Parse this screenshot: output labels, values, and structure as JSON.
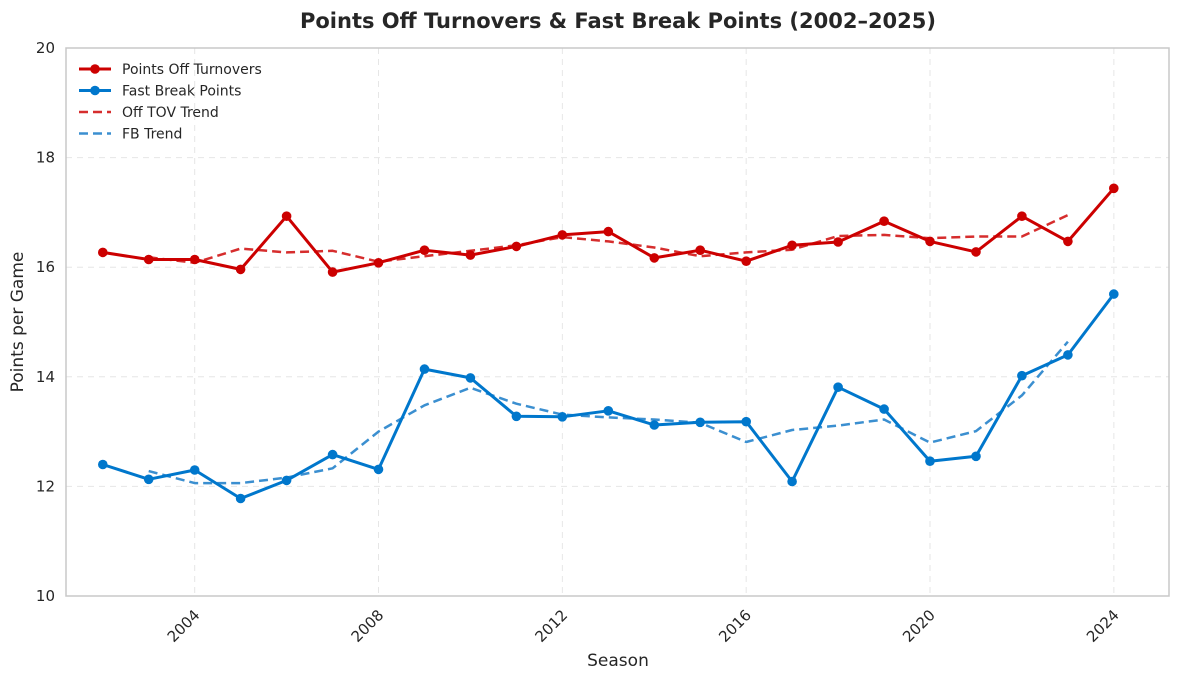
{
  "chart_data": {
    "type": "line",
    "title": "Points Off Turnovers & Fast Break Points (2002–2025)",
    "xlabel": "Season",
    "ylabel": "Points per Game",
    "xlim": [
      2001.2,
      2025.2
    ],
    "ylim": [
      10,
      20
    ],
    "xticks": [
      2004,
      2008,
      2012,
      2016,
      2020,
      2024
    ],
    "xtick_labels": [
      "2004",
      "2008",
      "2012",
      "2016",
      "2020",
      "2024"
    ],
    "yticks": [
      10,
      12,
      14,
      16,
      18,
      20
    ],
    "ytick_labels": [
      "10",
      "12",
      "14",
      "16",
      "18",
      "20"
    ],
    "grid": true,
    "legend_position": "top-left",
    "series": [
      {
        "name": "Points Off Turnovers",
        "style": "solid-marker",
        "color": "#cc0000",
        "x": [
          2002,
          2003,
          2004,
          2005,
          2006,
          2007,
          2008,
          2009,
          2010,
          2011,
          2012,
          2013,
          2014,
          2015,
          2016,
          2017,
          2018,
          2019,
          2020,
          2021,
          2022,
          2023,
          2024
        ],
        "values": [
          16.27,
          16.14,
          16.14,
          15.96,
          16.93,
          15.91,
          16.08,
          16.31,
          16.22,
          16.38,
          16.59,
          16.65,
          16.17,
          16.31,
          16.11,
          16.4,
          16.46,
          16.84,
          16.47,
          16.28,
          16.93,
          16.47,
          17.44
        ]
      },
      {
        "name": "Fast Break Points",
        "style": "solid-marker",
        "color": "#0077cc",
        "x": [
          2002,
          2003,
          2004,
          2005,
          2006,
          2007,
          2008,
          2009,
          2010,
          2011,
          2012,
          2013,
          2014,
          2015,
          2016,
          2017,
          2018,
          2019,
          2020,
          2021,
          2022,
          2023,
          2024
        ],
        "values": [
          12.4,
          12.13,
          12.3,
          11.78,
          12.11,
          12.58,
          12.31,
          14.14,
          13.98,
          13.28,
          13.27,
          13.38,
          13.12,
          13.17,
          13.18,
          12.09,
          13.81,
          13.41,
          12.46,
          12.55,
          14.02,
          14.4,
          15.51
        ]
      },
      {
        "name": "Off TOV Trend",
        "style": "dashed",
        "color": "#d62d2d",
        "x": [
          2003,
          2004,
          2005,
          2006,
          2007,
          2008,
          2009,
          2010,
          2011,
          2012,
          2013,
          2014,
          2015,
          2016,
          2017,
          2018,
          2019,
          2020,
          2021,
          2022,
          2023
        ],
        "values": [
          16.18,
          16.08,
          16.34,
          16.27,
          16.3,
          16.1,
          16.2,
          16.3,
          16.4,
          16.55,
          16.47,
          16.36,
          16.2,
          16.27,
          16.32,
          16.57,
          16.59,
          16.53,
          16.56,
          16.56,
          16.95
        ]
      },
      {
        "name": "FB Trend",
        "style": "dashed",
        "color": "#3b8fd0",
        "x": [
          2003,
          2004,
          2005,
          2006,
          2007,
          2008,
          2009,
          2010,
          2011,
          2012,
          2013,
          2014,
          2015,
          2016,
          2017,
          2018,
          2019,
          2020,
          2021,
          2022,
          2023
        ],
        "values": [
          12.28,
          12.06,
          12.06,
          12.16,
          12.33,
          13.0,
          13.48,
          13.8,
          13.51,
          13.31,
          13.26,
          13.22,
          13.16,
          12.81,
          13.03,
          13.11,
          13.22,
          12.8,
          13.01,
          13.66,
          14.64
        ]
      }
    ]
  }
}
